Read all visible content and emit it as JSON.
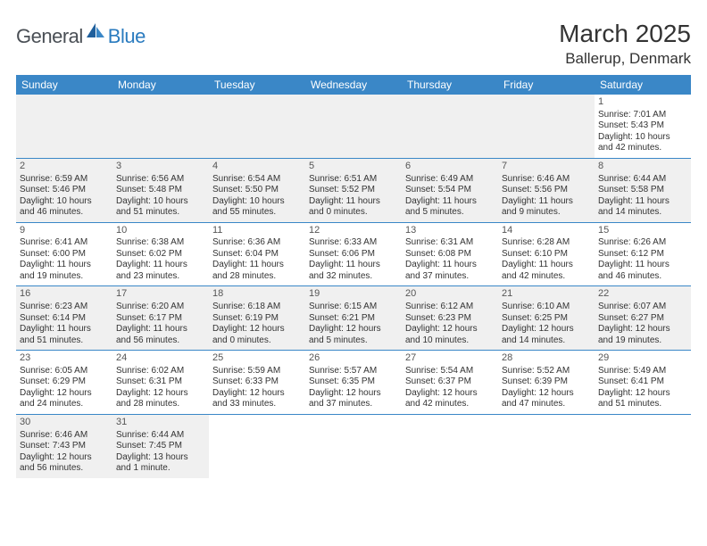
{
  "logo": {
    "part1": "General",
    "part2": "Blue"
  },
  "title": "March 2025",
  "location": "Ballerup, Denmark",
  "header_bg": "#3a87c7",
  "row_divider": "#3a87c7",
  "alt_row_bg": "#f0f0f0",
  "text_color": "#333333",
  "day_headers": [
    "Sunday",
    "Monday",
    "Tuesday",
    "Wednesday",
    "Thursday",
    "Friday",
    "Saturday"
  ],
  "weeks": [
    [
      null,
      null,
      null,
      null,
      null,
      null,
      {
        "n": "1",
        "sr": "Sunrise: 7:01 AM",
        "ss": "Sunset: 5:43 PM",
        "d1": "Daylight: 10 hours",
        "d2": "and 42 minutes."
      }
    ],
    [
      {
        "n": "2",
        "sr": "Sunrise: 6:59 AM",
        "ss": "Sunset: 5:46 PM",
        "d1": "Daylight: 10 hours",
        "d2": "and 46 minutes."
      },
      {
        "n": "3",
        "sr": "Sunrise: 6:56 AM",
        "ss": "Sunset: 5:48 PM",
        "d1": "Daylight: 10 hours",
        "d2": "and 51 minutes."
      },
      {
        "n": "4",
        "sr": "Sunrise: 6:54 AM",
        "ss": "Sunset: 5:50 PM",
        "d1": "Daylight: 10 hours",
        "d2": "and 55 minutes."
      },
      {
        "n": "5",
        "sr": "Sunrise: 6:51 AM",
        "ss": "Sunset: 5:52 PM",
        "d1": "Daylight: 11 hours",
        "d2": "and 0 minutes."
      },
      {
        "n": "6",
        "sr": "Sunrise: 6:49 AM",
        "ss": "Sunset: 5:54 PM",
        "d1": "Daylight: 11 hours",
        "d2": "and 5 minutes."
      },
      {
        "n": "7",
        "sr": "Sunrise: 6:46 AM",
        "ss": "Sunset: 5:56 PM",
        "d1": "Daylight: 11 hours",
        "d2": "and 9 minutes."
      },
      {
        "n": "8",
        "sr": "Sunrise: 6:44 AM",
        "ss": "Sunset: 5:58 PM",
        "d1": "Daylight: 11 hours",
        "d2": "and 14 minutes."
      }
    ],
    [
      {
        "n": "9",
        "sr": "Sunrise: 6:41 AM",
        "ss": "Sunset: 6:00 PM",
        "d1": "Daylight: 11 hours",
        "d2": "and 19 minutes."
      },
      {
        "n": "10",
        "sr": "Sunrise: 6:38 AM",
        "ss": "Sunset: 6:02 PM",
        "d1": "Daylight: 11 hours",
        "d2": "and 23 minutes."
      },
      {
        "n": "11",
        "sr": "Sunrise: 6:36 AM",
        "ss": "Sunset: 6:04 PM",
        "d1": "Daylight: 11 hours",
        "d2": "and 28 minutes."
      },
      {
        "n": "12",
        "sr": "Sunrise: 6:33 AM",
        "ss": "Sunset: 6:06 PM",
        "d1": "Daylight: 11 hours",
        "d2": "and 32 minutes."
      },
      {
        "n": "13",
        "sr": "Sunrise: 6:31 AM",
        "ss": "Sunset: 6:08 PM",
        "d1": "Daylight: 11 hours",
        "d2": "and 37 minutes."
      },
      {
        "n": "14",
        "sr": "Sunrise: 6:28 AM",
        "ss": "Sunset: 6:10 PM",
        "d1": "Daylight: 11 hours",
        "d2": "and 42 minutes."
      },
      {
        "n": "15",
        "sr": "Sunrise: 6:26 AM",
        "ss": "Sunset: 6:12 PM",
        "d1": "Daylight: 11 hours",
        "d2": "and 46 minutes."
      }
    ],
    [
      {
        "n": "16",
        "sr": "Sunrise: 6:23 AM",
        "ss": "Sunset: 6:14 PM",
        "d1": "Daylight: 11 hours",
        "d2": "and 51 minutes."
      },
      {
        "n": "17",
        "sr": "Sunrise: 6:20 AM",
        "ss": "Sunset: 6:17 PM",
        "d1": "Daylight: 11 hours",
        "d2": "and 56 minutes."
      },
      {
        "n": "18",
        "sr": "Sunrise: 6:18 AM",
        "ss": "Sunset: 6:19 PM",
        "d1": "Daylight: 12 hours",
        "d2": "and 0 minutes."
      },
      {
        "n": "19",
        "sr": "Sunrise: 6:15 AM",
        "ss": "Sunset: 6:21 PM",
        "d1": "Daylight: 12 hours",
        "d2": "and 5 minutes."
      },
      {
        "n": "20",
        "sr": "Sunrise: 6:12 AM",
        "ss": "Sunset: 6:23 PM",
        "d1": "Daylight: 12 hours",
        "d2": "and 10 minutes."
      },
      {
        "n": "21",
        "sr": "Sunrise: 6:10 AM",
        "ss": "Sunset: 6:25 PM",
        "d1": "Daylight: 12 hours",
        "d2": "and 14 minutes."
      },
      {
        "n": "22",
        "sr": "Sunrise: 6:07 AM",
        "ss": "Sunset: 6:27 PM",
        "d1": "Daylight: 12 hours",
        "d2": "and 19 minutes."
      }
    ],
    [
      {
        "n": "23",
        "sr": "Sunrise: 6:05 AM",
        "ss": "Sunset: 6:29 PM",
        "d1": "Daylight: 12 hours",
        "d2": "and 24 minutes."
      },
      {
        "n": "24",
        "sr": "Sunrise: 6:02 AM",
        "ss": "Sunset: 6:31 PM",
        "d1": "Daylight: 12 hours",
        "d2": "and 28 minutes."
      },
      {
        "n": "25",
        "sr": "Sunrise: 5:59 AM",
        "ss": "Sunset: 6:33 PM",
        "d1": "Daylight: 12 hours",
        "d2": "and 33 minutes."
      },
      {
        "n": "26",
        "sr": "Sunrise: 5:57 AM",
        "ss": "Sunset: 6:35 PM",
        "d1": "Daylight: 12 hours",
        "d2": "and 37 minutes."
      },
      {
        "n": "27",
        "sr": "Sunrise: 5:54 AM",
        "ss": "Sunset: 6:37 PM",
        "d1": "Daylight: 12 hours",
        "d2": "and 42 minutes."
      },
      {
        "n": "28",
        "sr": "Sunrise: 5:52 AM",
        "ss": "Sunset: 6:39 PM",
        "d1": "Daylight: 12 hours",
        "d2": "and 47 minutes."
      },
      {
        "n": "29",
        "sr": "Sunrise: 5:49 AM",
        "ss": "Sunset: 6:41 PM",
        "d1": "Daylight: 12 hours",
        "d2": "and 51 minutes."
      }
    ],
    [
      {
        "n": "30",
        "sr": "Sunrise: 6:46 AM",
        "ss": "Sunset: 7:43 PM",
        "d1": "Daylight: 12 hours",
        "d2": "and 56 minutes."
      },
      {
        "n": "31",
        "sr": "Sunrise: 6:44 AM",
        "ss": "Sunset: 7:45 PM",
        "d1": "Daylight: 13 hours",
        "d2": "and 1 minute."
      },
      null,
      null,
      null,
      null,
      null
    ]
  ]
}
